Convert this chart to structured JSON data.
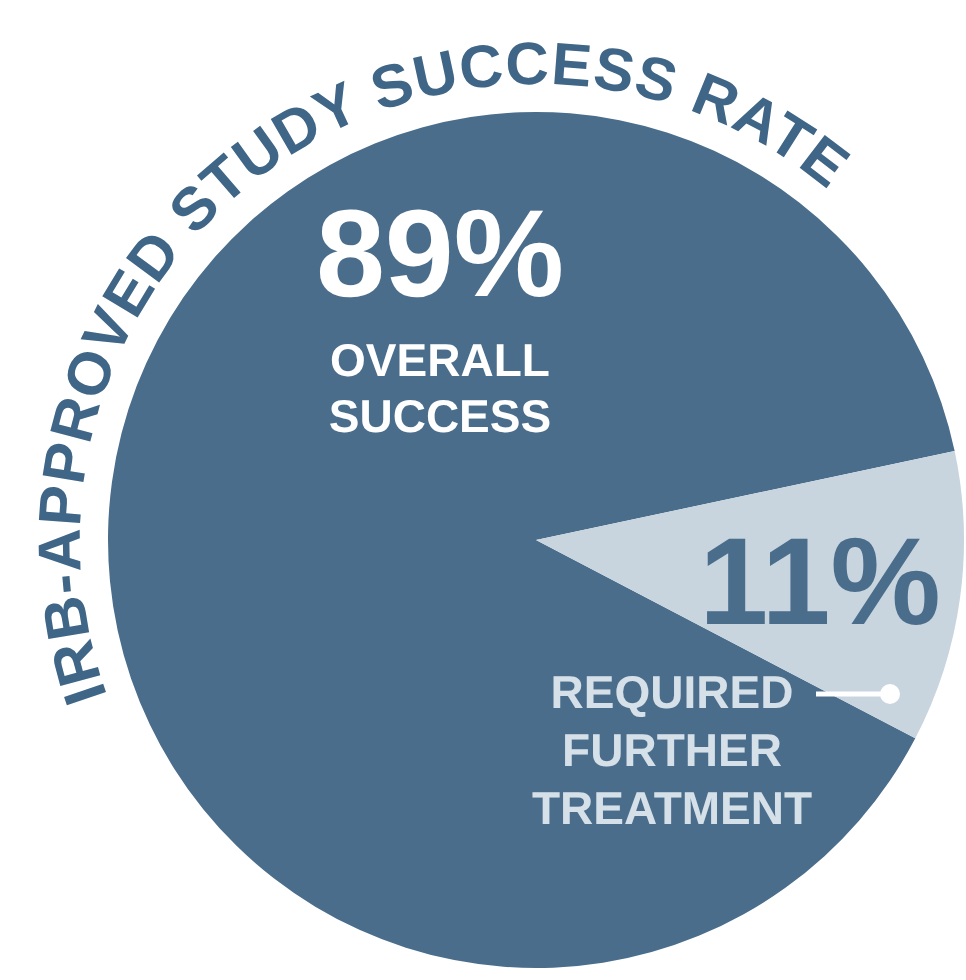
{
  "chart_data": {
    "type": "pie",
    "title": "IRB-APPROVED STUDY SUCCESS RATE",
    "categories": [
      "OVERALL SUCCESS",
      "REQUIRED FURTHER TREATMENT"
    ],
    "values": [
      89,
      11
    ],
    "colors": [
      "#4a6d8c",
      "#c8d5df"
    ],
    "value_labels": [
      "89%",
      "11%"
    ]
  }
}
